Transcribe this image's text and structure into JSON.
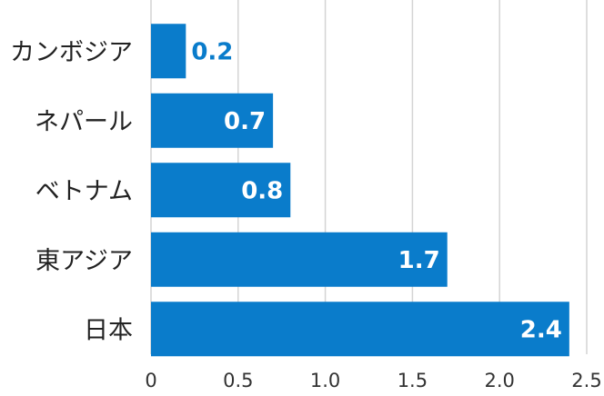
{
  "chart_data": {
    "type": "bar",
    "orientation": "horizontal",
    "title": "",
    "xlabel": "",
    "ylabel": "",
    "categories": [
      "カンボジア",
      "ネパール",
      "ベトナム",
      "東アジア",
      "日本"
    ],
    "values": [
      0.2,
      0.7,
      0.8,
      1.7,
      2.4
    ],
    "value_labels": [
      "0.2",
      "0.7",
      "0.8",
      "1.7",
      "2.4"
    ],
    "xlim": [
      0,
      2.5
    ],
    "xticks": [
      "0",
      "0.5",
      "1.0",
      "1.5",
      "2.0",
      "2.5"
    ],
    "grid": "vertical",
    "bar_color": "#0a7ccb",
    "label_inside_color": "#ffffff",
    "label_outside_color": "#0a7ccb",
    "grid_color": "#d4d4d4"
  }
}
